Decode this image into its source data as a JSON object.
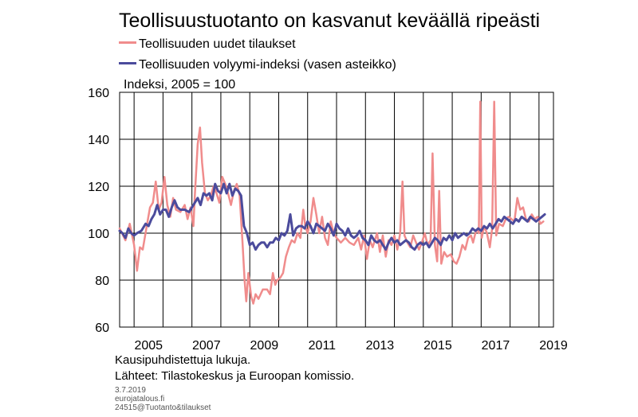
{
  "chart_data": {
    "type": "line",
    "title": "Teollisuustuotanto on kasvanut keväällä ripeästi",
    "ylabel": "Indeksi, 2005 = 100",
    "ylim": [
      60,
      160
    ],
    "yticks": [
      "60",
      "80",
      "100",
      "120",
      "140",
      "160"
    ],
    "xlim": [
      2004.5,
      2019.5
    ],
    "xticks": [
      "2005",
      "2007",
      "2009",
      "2011",
      "2013",
      "2015",
      "2017",
      "2019"
    ],
    "grid": true,
    "legend": "top-left",
    "series": [
      {
        "name": "Teollisuuden uudet tilaukset",
        "color": "#f08c8c",
        "points": [
          [
            2004.5,
            102
          ],
          [
            2004.7,
            97
          ],
          [
            2004.85,
            104
          ],
          [
            2005.0,
            95
          ],
          [
            2005.1,
            84
          ],
          [
            2005.2,
            94
          ],
          [
            2005.3,
            93
          ],
          [
            2005.45,
            104
          ],
          [
            2005.55,
            111
          ],
          [
            2005.65,
            113
          ],
          [
            2005.75,
            122
          ],
          [
            2005.85,
            110
          ],
          [
            2005.95,
            113
          ],
          [
            2006.05,
            124
          ],
          [
            2006.15,
            112
          ],
          [
            2006.25,
            107
          ],
          [
            2006.35,
            115
          ],
          [
            2006.45,
            110
          ],
          [
            2006.6,
            109
          ],
          [
            2006.75,
            112
          ],
          [
            2006.85,
            106
          ],
          [
            2006.95,
            111
          ],
          [
            2007.05,
            103
          ],
          [
            2007.1,
            116
          ],
          [
            2007.2,
            138
          ],
          [
            2007.28,
            145
          ],
          [
            2007.35,
            130
          ],
          [
            2007.45,
            117
          ],
          [
            2007.55,
            114
          ],
          [
            2007.65,
            116
          ],
          [
            2007.75,
            120
          ],
          [
            2007.85,
            117
          ],
          [
            2007.95,
            113
          ],
          [
            2008.05,
            124
          ],
          [
            2008.15,
            121
          ],
          [
            2008.25,
            117
          ],
          [
            2008.35,
            112
          ],
          [
            2008.45,
            118
          ],
          [
            2008.55,
            121
          ],
          [
            2008.65,
            116
          ],
          [
            2008.75,
            96
          ],
          [
            2008.82,
            80
          ],
          [
            2008.88,
            71
          ],
          [
            2008.95,
            83
          ],
          [
            2009.05,
            73
          ],
          [
            2009.12,
            70
          ],
          [
            2009.2,
            74
          ],
          [
            2009.3,
            72
          ],
          [
            2009.45,
            76
          ],
          [
            2009.6,
            76
          ],
          [
            2009.7,
            74
          ],
          [
            2009.8,
            83
          ],
          [
            2009.88,
            78
          ],
          [
            2009.95,
            80
          ],
          [
            2010.05,
            81
          ],
          [
            2010.15,
            83
          ],
          [
            2010.25,
            90
          ],
          [
            2010.35,
            94
          ],
          [
            2010.45,
            97
          ],
          [
            2010.55,
            96
          ],
          [
            2010.65,
            100
          ],
          [
            2010.75,
            98
          ],
          [
            2010.85,
            110
          ],
          [
            2010.92,
            103
          ],
          [
            2011.0,
            100
          ],
          [
            2011.1,
            105
          ],
          [
            2011.2,
            115
          ],
          [
            2011.3,
            108
          ],
          [
            2011.4,
            100
          ],
          [
            2011.5,
            107
          ],
          [
            2011.6,
            98
          ],
          [
            2011.7,
            95
          ],
          [
            2011.8,
            105
          ],
          [
            2011.9,
            100
          ],
          [
            2012.0,
            98
          ],
          [
            2012.15,
            96
          ],
          [
            2012.3,
            98
          ],
          [
            2012.45,
            96
          ],
          [
            2012.6,
            95
          ],
          [
            2012.75,
            98
          ],
          [
            2012.85,
            93
          ],
          [
            2012.95,
            99
          ],
          [
            2013.05,
            89
          ],
          [
            2013.15,
            97
          ],
          [
            2013.25,
            94
          ],
          [
            2013.4,
            100
          ],
          [
            2013.5,
            92
          ],
          [
            2013.6,
            99
          ],
          [
            2013.7,
            90
          ],
          [
            2013.8,
            97
          ],
          [
            2013.9,
            95
          ],
          [
            2014.0,
            99
          ],
          [
            2014.1,
            93
          ],
          [
            2014.2,
            100
          ],
          [
            2014.28,
            122
          ],
          [
            2014.35,
            99
          ],
          [
            2014.45,
            96
          ],
          [
            2014.55,
            94
          ],
          [
            2014.65,
            99
          ],
          [
            2014.75,
            96
          ],
          [
            2014.85,
            93
          ],
          [
            2014.95,
            96
          ],
          [
            2015.05,
            100
          ],
          [
            2015.15,
            95
          ],
          [
            2015.25,
            97
          ],
          [
            2015.32,
            134
          ],
          [
            2015.4,
            95
          ],
          [
            2015.48,
            88
          ],
          [
            2015.55,
            118
          ],
          [
            2015.62,
            87
          ],
          [
            2015.72,
            92
          ],
          [
            2015.82,
            90
          ],
          [
            2015.95,
            91
          ],
          [
            2016.05,
            88
          ],
          [
            2016.15,
            87
          ],
          [
            2016.25,
            90
          ],
          [
            2016.35,
            95
          ],
          [
            2016.45,
            93
          ],
          [
            2016.55,
            98
          ],
          [
            2016.65,
            99
          ],
          [
            2016.72,
            96
          ],
          [
            2016.8,
            100
          ],
          [
            2016.88,
            102
          ],
          [
            2016.92,
            100
          ],
          [
            2016.97,
            156
          ],
          [
            2017.02,
            98
          ],
          [
            2017.1,
            103
          ],
          [
            2017.2,
            100
          ],
          [
            2017.3,
            94
          ],
          [
            2017.38,
            102
          ],
          [
            2017.45,
            156
          ],
          [
            2017.52,
            99
          ],
          [
            2017.62,
            104
          ],
          [
            2017.75,
            103
          ],
          [
            2017.85,
            106
          ],
          [
            2017.95,
            107
          ],
          [
            2018.05,
            106
          ],
          [
            2018.15,
            105
          ],
          [
            2018.25,
            115
          ],
          [
            2018.35,
            110
          ],
          [
            2018.45,
            111
          ],
          [
            2018.55,
            106
          ],
          [
            2018.65,
            105
          ],
          [
            2018.75,
            108
          ],
          [
            2018.85,
            106
          ],
          [
            2018.95,
            107
          ],
          [
            2019.05,
            104
          ],
          [
            2019.15,
            105
          ]
        ]
      },
      {
        "name": "Teollisuuden volyymi-indeksi (vasen asteikko)",
        "color": "#4b4b9c",
        "points": [
          [
            2004.5,
            101
          ],
          [
            2004.6,
            100
          ],
          [
            2004.7,
            98
          ],
          [
            2004.8,
            102
          ],
          [
            2004.9,
            100
          ],
          [
            2005.0,
            99
          ],
          [
            2005.1,
            100
          ],
          [
            2005.25,
            101
          ],
          [
            2005.4,
            104
          ],
          [
            2005.5,
            103
          ],
          [
            2005.6,
            106
          ],
          [
            2005.7,
            108
          ],
          [
            2005.8,
            112
          ],
          [
            2005.9,
            108
          ],
          [
            2006.0,
            110
          ],
          [
            2006.1,
            110
          ],
          [
            2006.2,
            107
          ],
          [
            2006.3,
            111
          ],
          [
            2006.4,
            114
          ],
          [
            2006.5,
            111
          ],
          [
            2006.6,
            110
          ],
          [
            2006.75,
            110
          ],
          [
            2006.9,
            109
          ],
          [
            2007.0,
            111
          ],
          [
            2007.1,
            113
          ],
          [
            2007.2,
            115
          ],
          [
            2007.3,
            112
          ],
          [
            2007.4,
            117
          ],
          [
            2007.5,
            116
          ],
          [
            2007.6,
            117
          ],
          [
            2007.7,
            114
          ],
          [
            2007.8,
            121
          ],
          [
            2007.9,
            118
          ],
          [
            2008.0,
            117
          ],
          [
            2008.1,
            121
          ],
          [
            2008.2,
            117
          ],
          [
            2008.3,
            121
          ],
          [
            2008.4,
            116
          ],
          [
            2008.5,
            119
          ],
          [
            2008.6,
            118
          ],
          [
            2008.7,
            116
          ],
          [
            2008.8,
            103
          ],
          [
            2008.9,
            100
          ],
          [
            2009.0,
            95
          ],
          [
            2009.1,
            96
          ],
          [
            2009.2,
            93
          ],
          [
            2009.3,
            95
          ],
          [
            2009.4,
            96
          ],
          [
            2009.5,
            96
          ],
          [
            2009.6,
            94
          ],
          [
            2009.7,
            96
          ],
          [
            2009.8,
            96
          ],
          [
            2009.9,
            98
          ],
          [
            2010.0,
            97
          ],
          [
            2010.1,
            100
          ],
          [
            2010.2,
            99
          ],
          [
            2010.3,
            101
          ],
          [
            2010.4,
            108
          ],
          [
            2010.5,
            99
          ],
          [
            2010.6,
            102
          ],
          [
            2010.7,
            103
          ],
          [
            2010.8,
            103
          ],
          [
            2010.9,
            102
          ],
          [
            2011.0,
            105
          ],
          [
            2011.1,
            103
          ],
          [
            2011.2,
            100
          ],
          [
            2011.3,
            104
          ],
          [
            2011.4,
            103
          ],
          [
            2011.5,
            102
          ],
          [
            2011.6,
            101
          ],
          [
            2011.7,
            104
          ],
          [
            2011.8,
            102
          ],
          [
            2011.9,
            99
          ],
          [
            2012.0,
            104
          ],
          [
            2012.1,
            102
          ],
          [
            2012.2,
            101
          ],
          [
            2012.3,
            99
          ],
          [
            2012.4,
            102
          ],
          [
            2012.5,
            99
          ],
          [
            2012.6,
            98
          ],
          [
            2012.7,
            99
          ],
          [
            2012.8,
            101
          ],
          [
            2012.9,
            98
          ],
          [
            2013.0,
            97
          ],
          [
            2013.1,
            95
          ],
          [
            2013.2,
            99
          ],
          [
            2013.3,
            97
          ],
          [
            2013.4,
            96
          ],
          [
            2013.5,
            97
          ],
          [
            2013.6,
            95
          ],
          [
            2013.7,
            93
          ],
          [
            2013.8,
            96
          ],
          [
            2013.9,
            98
          ],
          [
            2014.0,
            96
          ],
          [
            2014.1,
            97
          ],
          [
            2014.2,
            95
          ],
          [
            2014.3,
            96
          ],
          [
            2014.4,
            97
          ],
          [
            2014.5,
            96
          ],
          [
            2014.6,
            94
          ],
          [
            2014.7,
            93
          ],
          [
            2014.8,
            95
          ],
          [
            2014.9,
            96
          ],
          [
            2015.0,
            95
          ],
          [
            2015.1,
            96
          ],
          [
            2015.2,
            94
          ],
          [
            2015.3,
            96
          ],
          [
            2015.4,
            98
          ],
          [
            2015.5,
            97
          ],
          [
            2015.6,
            95
          ],
          [
            2015.7,
            98
          ],
          [
            2015.8,
            97
          ],
          [
            2015.9,
            99
          ],
          [
            2016.0,
            97
          ],
          [
            2016.1,
            100
          ],
          [
            2016.2,
            98
          ],
          [
            2016.3,
            99
          ],
          [
            2016.4,
            100
          ],
          [
            2016.5,
            99
          ],
          [
            2016.6,
            100
          ],
          [
            2016.7,
            102
          ],
          [
            2016.8,
            101
          ],
          [
            2016.9,
            102
          ],
          [
            2017.0,
            101
          ],
          [
            2017.1,
            103
          ],
          [
            2017.2,
            102
          ],
          [
            2017.3,
            104
          ],
          [
            2017.4,
            102
          ],
          [
            2017.5,
            104
          ],
          [
            2017.6,
            106
          ],
          [
            2017.7,
            105
          ],
          [
            2017.8,
            107
          ],
          [
            2017.9,
            106
          ],
          [
            2018.0,
            105
          ],
          [
            2018.1,
            104
          ],
          [
            2018.2,
            106
          ],
          [
            2018.3,
            105
          ],
          [
            2018.4,
            107
          ],
          [
            2018.5,
            106
          ],
          [
            2018.6,
            105
          ],
          [
            2018.7,
            107
          ],
          [
            2018.8,
            106
          ],
          [
            2018.9,
            105
          ],
          [
            2019.0,
            106
          ],
          [
            2019.1,
            107
          ],
          [
            2019.2,
            108
          ]
        ]
      }
    ]
  },
  "notes": {
    "line1": "Kausipuhdistettuja lukuja.",
    "line2": "Lähteet: Tilastokeskus ja Euroopan komissio."
  },
  "footer": {
    "date": "3.7.2019",
    "site": "eurojatalous.fi",
    "code": "24515@Tuotanto&tilaukset"
  }
}
